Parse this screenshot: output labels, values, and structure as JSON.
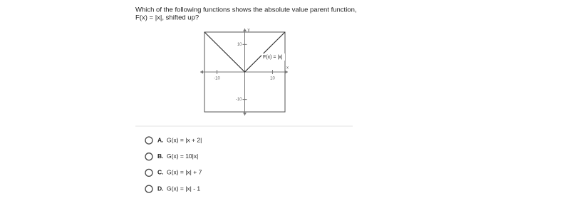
{
  "question": {
    "lines": [
      "Which of the following functions shows the absolute value parent function,",
      "F(x) = |x|, shifted up?"
    ]
  },
  "graph": {
    "function_label": "F(x) = |x|",
    "x_label": "x",
    "y_label": "y",
    "xlim": [
      -14.5,
      14.5
    ],
    "ylim": [
      -14.5,
      14.5
    ],
    "xticks": [
      -10,
      10
    ],
    "yticks": [
      10,
      -10
    ],
    "points": {
      "x": [
        -14.5,
        0,
        14.5
      ],
      "y": [
        14.5,
        0,
        14.5
      ]
    }
  },
  "options": [
    {
      "letter": "A.",
      "text": "G(x) = |x + 2|"
    },
    {
      "letter": "B.",
      "text": "G(x) = 10|x|"
    },
    {
      "letter": "C.",
      "text": "G(x) = |x| + 7"
    },
    {
      "letter": "D.",
      "text": "G(x) = |x| - 1"
    }
  ]
}
